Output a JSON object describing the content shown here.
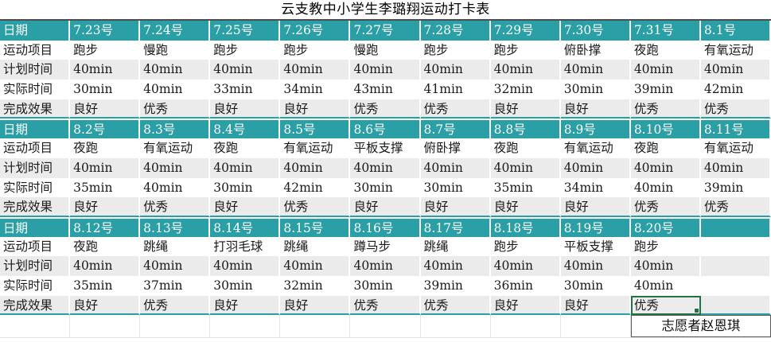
{
  "title": "云支教中小学生李璐翔运动打卡表",
  "row_labels": {
    "date": "日期",
    "activity": "运动项目",
    "planned": "计划时间",
    "actual": "实际时间",
    "result": "完成效果"
  },
  "sections": [
    {
      "dates": [
        "7.23号",
        "7.24号",
        "7.25号",
        "7.26号",
        "7.27号",
        "7.28号",
        "7.29号",
        "7.30号",
        "7.31号",
        "8.1号"
      ],
      "activities": [
        "跑步",
        "慢跑",
        "跑步",
        "跑步",
        "慢跑",
        "跑步",
        "跑步",
        "俯卧撑",
        "夜跑",
        "有氧运动"
      ],
      "planned": [
        "40min",
        "40min",
        "40min",
        "40min",
        "40min",
        "40min",
        "40min",
        "40min",
        "40min",
        "40min"
      ],
      "actual": [
        "30min",
        "40min",
        "33min",
        "34min",
        "43min",
        "41min",
        "32min",
        "30min",
        "39min",
        "42min"
      ],
      "results": [
        "良好",
        "优秀",
        "良好",
        "良好",
        "优秀",
        "优秀",
        "良好",
        "良好",
        "优秀",
        "优秀"
      ]
    },
    {
      "dates": [
        "8.2号",
        "8.3号",
        "8.4号",
        "8.5号",
        "8.6号",
        "8.7号",
        "8.8号",
        "8.9号",
        "8.10号",
        "8.11号"
      ],
      "activities": [
        "夜跑",
        "有氧运动",
        "夜跑",
        "有氧运动",
        "平板支撑",
        "俯卧撑",
        "夜跑",
        "有氧运动",
        "夜跑",
        "有氧运动"
      ],
      "planned": [
        "40min",
        "40min",
        "40min",
        "40min",
        "40min",
        "40min",
        "40min",
        "40min",
        "40min",
        "40min"
      ],
      "actual": [
        "35min",
        "40min",
        "30min",
        "42min",
        "30min",
        "30min",
        "35min",
        "34min",
        "40min",
        "39min"
      ],
      "results": [
        "良好",
        "优秀",
        "良好",
        "优秀",
        "良好",
        "良好",
        "良好",
        "良好",
        "优秀",
        "优秀"
      ]
    },
    {
      "dates": [
        "8.12号",
        "8.13号",
        "8.14号",
        "8.15号",
        "8.16号",
        "8.17号",
        "8.18号",
        "8.19号",
        "8.20号",
        ""
      ],
      "activities": [
        "夜跑",
        "跳绳",
        "打羽毛球",
        "跳绳",
        "蹲马步",
        "跳绳",
        "跑步",
        "平板支撑",
        "跑步",
        ""
      ],
      "planned": [
        "40min",
        "40min",
        "40min",
        "40min",
        "40min",
        "40min",
        "40min",
        "40min",
        "40min",
        ""
      ],
      "actual": [
        "35min",
        "37min",
        "30min",
        "32min",
        "30min",
        "39min",
        "36min",
        "30min",
        "40min",
        ""
      ],
      "results": [
        "良好",
        "优秀",
        "良好",
        "良好",
        "优秀",
        "优秀",
        "良好",
        "良好",
        "优秀",
        ""
      ]
    }
  ],
  "selection": {
    "section_index": 2,
    "row": "result",
    "col_index": 8,
    "value": "优秀"
  },
  "footer": {
    "volunteer": "志愿者赵恩琪"
  },
  "colors": {
    "header_teal": "#2b9fa6",
    "band_gray": "#ebebeb",
    "selection_green": "#217346",
    "table_top_border": "#4d4d4d",
    "gridline": "#e3e3e3"
  }
}
